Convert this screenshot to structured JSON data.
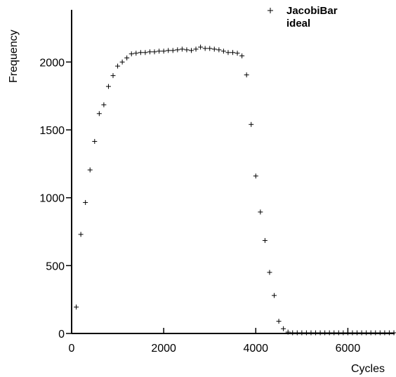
{
  "chart_data": {
    "type": "scatter",
    "title": "",
    "xlabel": "Cycles",
    "ylabel": "Frequency",
    "xlim": [
      0,
      7000
    ],
    "ylim": [
      0,
      2400
    ],
    "xticks": [
      0,
      2000,
      4000,
      6000
    ],
    "yticks": [
      0,
      500,
      1000,
      1500,
      2000
    ],
    "grid": false,
    "legend": {
      "position": "top-right",
      "entries": [
        "JacobiBar",
        "ideal"
      ]
    },
    "series": [
      {
        "name": "JacobiBar",
        "marker": "plus",
        "x": [
          100,
          200,
          300,
          400,
          500,
          600,
          700,
          800,
          900,
          1000,
          1100,
          1200,
          1300,
          1400,
          1500,
          1600,
          1700,
          1800,
          1900,
          2000,
          2100,
          2200,
          2300,
          2400,
          2500,
          2600,
          2700,
          2800,
          2900,
          3000,
          3100,
          3200,
          3300,
          3400,
          3500,
          3600,
          3700,
          3800,
          3900,
          4000,
          4100,
          4200,
          4300,
          4400,
          4500,
          4600,
          4700,
          4800,
          4900,
          5000,
          5100,
          5200,
          5300,
          5400,
          5500,
          5600,
          5700,
          5800,
          5900,
          6000,
          6100,
          6200,
          6300,
          6400,
          6500,
          6600,
          6700,
          6800,
          6900,
          7000
        ],
        "y": [
          195,
          730,
          965,
          1205,
          1415,
          1620,
          1685,
          1820,
          1900,
          1970,
          2000,
          2030,
          2060,
          2065,
          2070,
          2070,
          2075,
          2075,
          2080,
          2080,
          2085,
          2085,
          2090,
          2095,
          2090,
          2085,
          2095,
          2110,
          2100,
          2100,
          2095,
          2090,
          2080,
          2070,
          2070,
          2065,
          2045,
          1905,
          1540,
          1160,
          895,
          685,
          450,
          280,
          90,
          35,
          10,
          5,
          5,
          5,
          5,
          5,
          5,
          5,
          5,
          5,
          5,
          5,
          5,
          5,
          5,
          5,
          5,
          5,
          5,
          5,
          5,
          5,
          5,
          5
        ]
      },
      {
        "name": "ideal",
        "marker": "none",
        "x": [],
        "y": []
      }
    ]
  }
}
